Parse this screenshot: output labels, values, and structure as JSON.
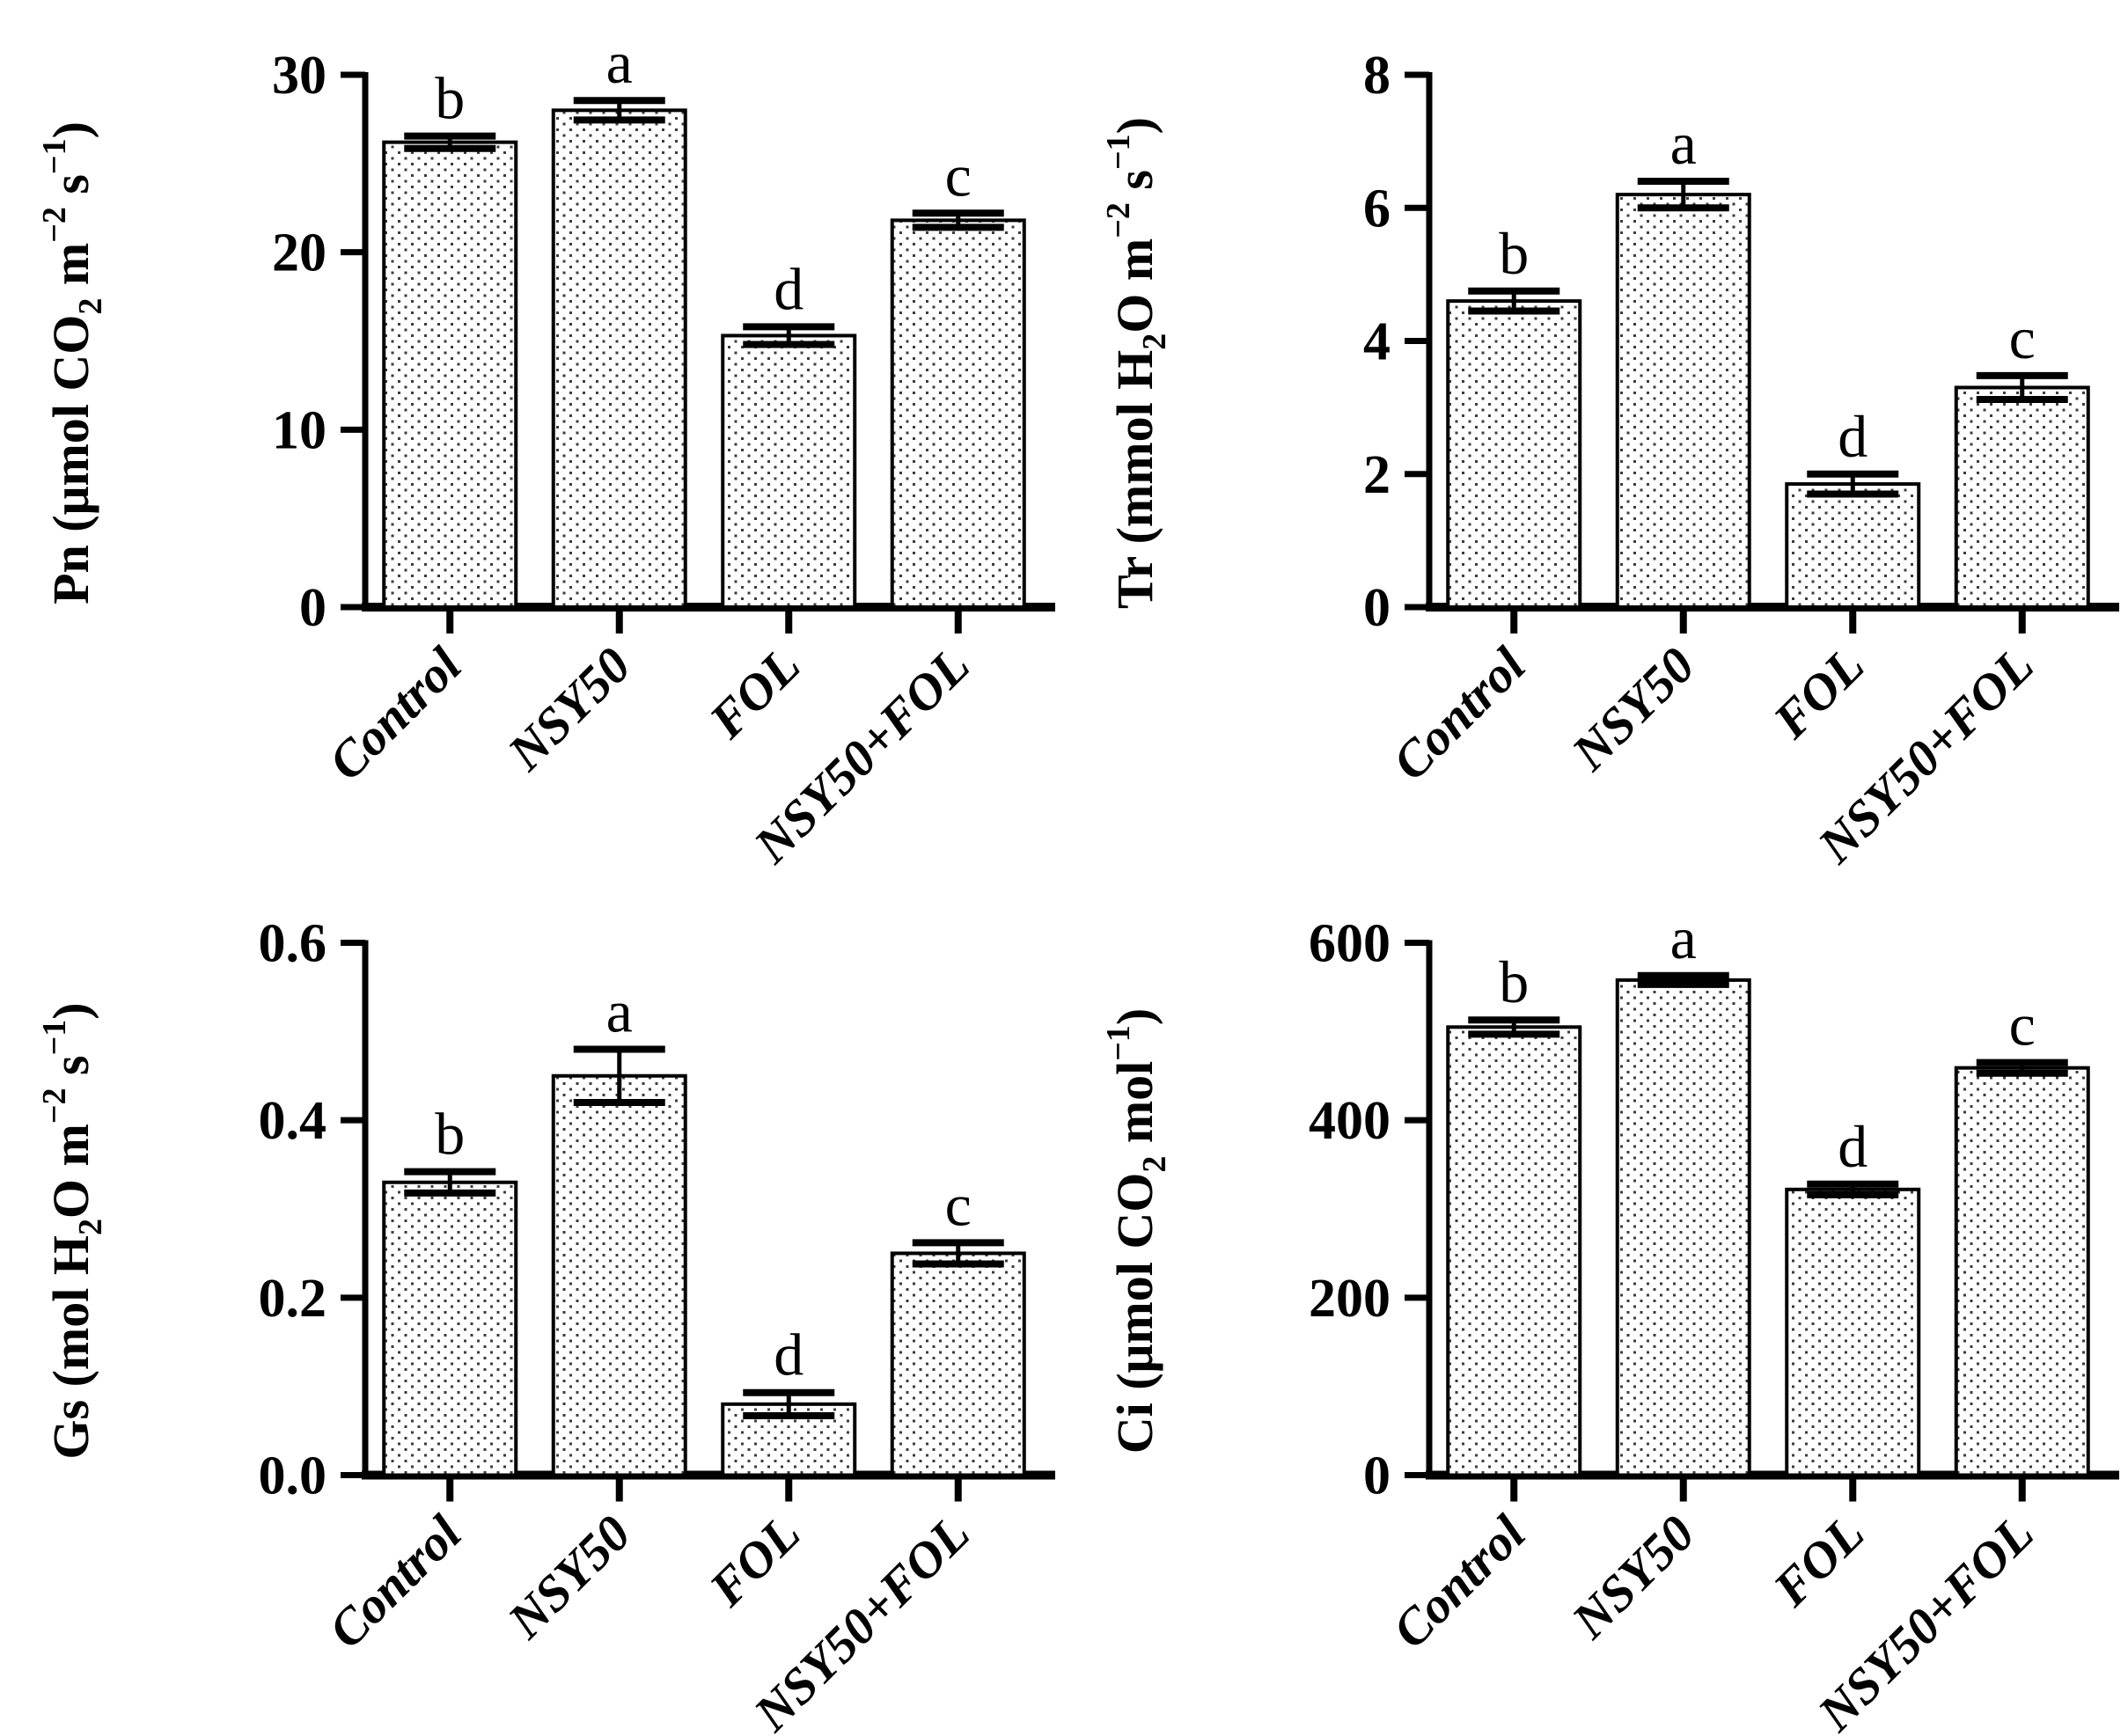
{
  "figure": {
    "description": "Four-panel bar chart of leaf gas-exchange parameters under different treatments",
    "panel_order": [
      "Pn",
      "Tr",
      "Gs",
      "Ci"
    ]
  },
  "colors": {
    "background": "#ffffff",
    "ink": "#000000",
    "stipple_dot": "#3c3c3c",
    "bar_fill": "#ffffff"
  },
  "chart_data": [
    {
      "id": "pn",
      "type": "bar",
      "title": "",
      "xlabel": "",
      "ylabel": "Pn (μmol CO~2~ m^−2^ s^−1^)",
      "categories": [
        "Control",
        "NSY50",
        "FOL",
        "NSY50+FOL"
      ],
      "values": [
        26.2,
        28.0,
        15.3,
        21.8
      ],
      "errors": [
        0.35,
        0.55,
        0.5,
        0.4
      ],
      "sig_letters": [
        "b",
        "a",
        "d",
        "c"
      ],
      "ylim": [
        0,
        30
      ],
      "yticks": [
        {
          "v": 0,
          "label": "0"
        },
        {
          "v": 10,
          "label": "10"
        },
        {
          "v": 20,
          "label": "20"
        },
        {
          "v": 30,
          "label": "30"
        }
      ],
      "grid": false,
      "legend": "none"
    },
    {
      "id": "tr",
      "type": "bar",
      "title": "",
      "xlabel": "",
      "ylabel": "Tr (mmol H~2~O m^−2^ s^−1^)",
      "categories": [
        "Control",
        "NSY50",
        "FOL",
        "NSY50+FOL"
      ],
      "values": [
        4.6,
        6.2,
        1.85,
        3.3
      ],
      "errors": [
        0.15,
        0.2,
        0.15,
        0.18
      ],
      "sig_letters": [
        "b",
        "a",
        "d",
        "c"
      ],
      "ylim": [
        0,
        8
      ],
      "yticks": [
        {
          "v": 0,
          "label": "0"
        },
        {
          "v": 2,
          "label": "2"
        },
        {
          "v": 4,
          "label": "4"
        },
        {
          "v": 6,
          "label": "6"
        },
        {
          "v": 8,
          "label": "8"
        }
      ],
      "grid": false,
      "legend": "none"
    },
    {
      "id": "gs",
      "type": "bar",
      "title": "",
      "xlabel": "",
      "ylabel": "Gs (mol H~2~O m^−2^ s^−1^)",
      "categories": [
        "Control",
        "NSY50",
        "FOL",
        "NSY50+FOL"
      ],
      "values": [
        0.33,
        0.45,
        0.08,
        0.25
      ],
      "errors": [
        0.012,
        0.03,
        0.013,
        0.012
      ],
      "sig_letters": [
        "b",
        "a",
        "d",
        "c"
      ],
      "ylim": [
        0,
        0.6
      ],
      "yticks": [
        {
          "v": 0,
          "label": "0.0"
        },
        {
          "v": 0.2,
          "label": "0.2"
        },
        {
          "v": 0.4,
          "label": "0.4"
        },
        {
          "v": 0.6,
          "label": "0.6"
        }
      ],
      "grid": false,
      "legend": "none"
    },
    {
      "id": "ci",
      "type": "bar",
      "title": "",
      "xlabel": "",
      "ylabel": "Ci (μmol CO~2~ mol^−1^)",
      "categories": [
        "Control",
        "NSY50",
        "FOL",
        "NSY50+FOL"
      ],
      "values": [
        505,
        558,
        322,
        459
      ],
      "errors": [
        8,
        5,
        6,
        6
      ],
      "sig_letters": [
        "b",
        "a",
        "d",
        "c"
      ],
      "ylim": [
        0,
        600
      ],
      "yticks": [
        {
          "v": 0,
          "label": "0"
        },
        {
          "v": 200,
          "label": "200"
        },
        {
          "v": 400,
          "label": "400"
        },
        {
          "v": 600,
          "label": "600"
        }
      ],
      "grid": false,
      "legend": "none"
    }
  ]
}
